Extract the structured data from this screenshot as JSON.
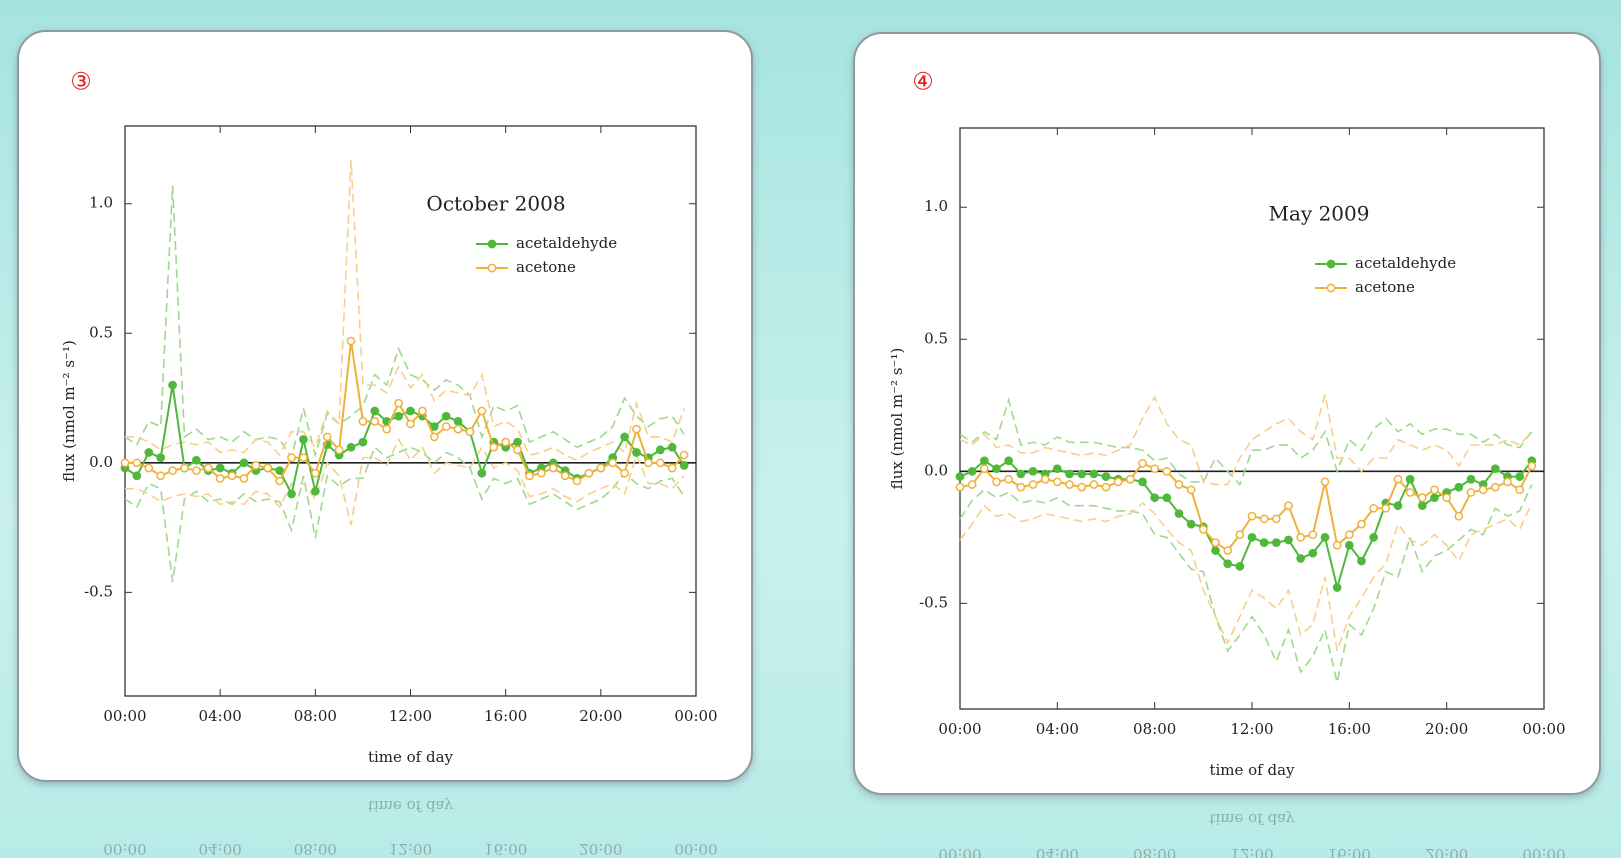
{
  "chart_data": [
    {
      "type": "line",
      "panel_label": "③",
      "title": "October 2008",
      "xlabel": "time of day",
      "ylabel": "flux (nmol m⁻² s⁻¹)",
      "legend": "upper right",
      "zero_line": true,
      "x": [
        0,
        0.5,
        1,
        1.5,
        2,
        2.5,
        3,
        3.5,
        4,
        4.5,
        5,
        5.5,
        6,
        6.5,
        7,
        7.5,
        8,
        8.5,
        9,
        9.5,
        10,
        10.5,
        11,
        11.5,
        12,
        12.5,
        13,
        13.5,
        14,
        14.5,
        15,
        15.5,
        16,
        16.5,
        17,
        17.5,
        18,
        18.5,
        19,
        19.5,
        20,
        20.5,
        21,
        21.5,
        22,
        22.5,
        23,
        23.5
      ],
      "xlim": [
        0,
        24
      ],
      "xticks": [
        {
          "value": 0,
          "label": "00:00"
        },
        {
          "value": 4,
          "label": "04:00"
        },
        {
          "value": 8,
          "label": "08:00"
        },
        {
          "value": 12,
          "label": "12:00"
        },
        {
          "value": 16,
          "label": "16:00"
        },
        {
          "value": 20,
          "label": "20:00"
        },
        {
          "value": 24,
          "label": "00:00"
        }
      ],
      "ylim": [
        -0.9,
        1.3
      ],
      "yticks": [
        -0.5,
        {
          "value": 0,
          "label": "0.0"
        },
        0.5,
        {
          "value": 1,
          "label": "1.0"
        }
      ],
      "series": [
        {
          "color": "#9fd88f",
          "dash": true,
          "values": [
            0.1,
            0.07,
            0.16,
            0.14,
            1.07,
            0.1,
            0.13,
            0.09,
            0.1,
            0.08,
            0.12,
            0.09,
            0.1,
            0.09,
            0.02,
            0.21,
            0.03,
            0.19,
            0.15,
            0.18,
            0.22,
            0.34,
            0.3,
            0.44,
            0.34,
            0.32,
            0.28,
            0.32,
            0.3,
            0.26,
            0.1,
            0.22,
            0.2,
            0.22,
            0.08,
            0.1,
            0.12,
            0.09,
            0.06,
            0.08,
            0.1,
            0.14,
            0.25,
            0.18,
            0.14,
            0.17,
            0.18,
            0.11
          ]
        },
        {
          "color": "#9fd88f",
          "dash": true,
          "values": [
            -0.14,
            -0.17,
            -0.08,
            -0.1,
            -0.46,
            -0.14,
            -0.11,
            -0.15,
            -0.14,
            -0.16,
            -0.12,
            -0.15,
            -0.14,
            -0.15,
            -0.26,
            -0.05,
            -0.29,
            -0.05,
            -0.09,
            -0.06,
            -0.06,
            0.06,
            0.02,
            0.04,
            0.06,
            0.04,
            0.0,
            0.04,
            0.02,
            -0.02,
            -0.14,
            -0.06,
            -0.08,
            -0.06,
            -0.16,
            -0.14,
            -0.12,
            -0.15,
            -0.18,
            -0.16,
            -0.14,
            -0.1,
            -0.04,
            -0.08,
            -0.1,
            -0.07,
            -0.06,
            -0.13
          ]
        },
        {
          "color": "#f7cf8a",
          "dash": true,
          "values": [
            0.1,
            0.1,
            0.08,
            0.05,
            0.07,
            0.08,
            0.07,
            0.08,
            0.04,
            0.05,
            0.04,
            0.09,
            0.08,
            0.03,
            0.12,
            0.12,
            0.06,
            0.2,
            0.15,
            1.17,
            0.3,
            0.3,
            0.27,
            0.37,
            0.29,
            0.34,
            0.24,
            0.28,
            0.27,
            0.26,
            0.34,
            0.14,
            0.16,
            0.13,
            0.03,
            0.04,
            0.06,
            0.03,
            0.01,
            0.04,
            0.06,
            0.08,
            0.04,
            0.23,
            0.1,
            0.1,
            0.08,
            0.21
          ]
        },
        {
          "color": "#f7cf8a",
          "dash": true,
          "values": [
            -0.1,
            -0.1,
            -0.12,
            -0.15,
            -0.13,
            -0.12,
            -0.13,
            -0.12,
            -0.16,
            -0.15,
            -0.16,
            -0.11,
            -0.12,
            -0.17,
            -0.08,
            -0.08,
            -0.14,
            0.0,
            -0.05,
            -0.24,
            0.02,
            0.02,
            -0.01,
            0.09,
            0.01,
            0.06,
            -0.04,
            0.0,
            -0.01,
            -0.02,
            0.06,
            -0.02,
            0.0,
            -0.03,
            -0.13,
            -0.12,
            -0.1,
            -0.13,
            -0.15,
            -0.12,
            -0.1,
            -0.08,
            -0.12,
            0.03,
            -0.08,
            -0.08,
            -0.1,
            -0.05
          ]
        },
        {
          "name": "acetaldehyde",
          "color": "#4fb83a",
          "marker": "filled",
          "values": [
            -0.02,
            -0.05,
            0.04,
            0.02,
            0.3,
            -0.02,
            0.01,
            -0.03,
            -0.02,
            -0.04,
            0.0,
            -0.03,
            -0.02,
            -0.03,
            -0.12,
            0.09,
            -0.11,
            0.07,
            0.03,
            0.06,
            0.08,
            0.2,
            0.16,
            0.18,
            0.2,
            0.18,
            0.14,
            0.18,
            0.16,
            0.12,
            -0.04,
            0.08,
            0.06,
            0.08,
            -0.04,
            -0.02,
            0.0,
            -0.03,
            -0.06,
            -0.04,
            -0.02,
            0.02,
            0.1,
            0.04,
            0.02,
            0.05,
            0.06,
            -0.01
          ]
        },
        {
          "name": "acetone",
          "color": "#f0b13a",
          "marker": "open",
          "values": [
            0.0,
            0.0,
            -0.02,
            -0.05,
            -0.03,
            -0.02,
            -0.03,
            -0.02,
            -0.06,
            -0.05,
            -0.06,
            -0.01,
            -0.02,
            -0.07,
            0.02,
            0.02,
            -0.04,
            0.1,
            0.05,
            0.47,
            0.16,
            0.16,
            0.13,
            0.23,
            0.15,
            0.2,
            0.1,
            0.14,
            0.13,
            0.12,
            0.2,
            0.06,
            0.08,
            0.05,
            -0.05,
            -0.04,
            -0.02,
            -0.05,
            -0.07,
            -0.04,
            -0.02,
            0.0,
            -0.04,
            0.13,
            0.0,
            0.0,
            -0.02,
            0.03
          ]
        }
      ]
    },
    {
      "type": "line",
      "panel_label": "④",
      "title": "May 2009",
      "xlabel": "time of day",
      "ylabel": "flux (nmol m⁻² s⁻¹)",
      "legend": "upper right",
      "zero_line": true,
      "x": [
        0,
        0.5,
        1,
        1.5,
        2,
        2.5,
        3,
        3.5,
        4,
        4.5,
        5,
        5.5,
        6,
        6.5,
        7,
        7.5,
        8,
        8.5,
        9,
        9.5,
        10,
        10.5,
        11,
        11.5,
        12,
        12.5,
        13,
        13.5,
        14,
        14.5,
        15,
        15.5,
        16,
        16.5,
        17,
        17.5,
        18,
        18.5,
        19,
        19.5,
        20,
        20.5,
        21,
        21.5,
        22,
        22.5,
        23,
        23.5
      ],
      "xlim": [
        0,
        24
      ],
      "xticks": [
        {
          "value": 0,
          "label": "00:00"
        },
        {
          "value": 4,
          "label": "04:00"
        },
        {
          "value": 8,
          "label": "08:00"
        },
        {
          "value": 12,
          "label": "12:00"
        },
        {
          "value": 16,
          "label": "16:00"
        },
        {
          "value": 20,
          "label": "20:00"
        },
        {
          "value": 24,
          "label": "00:00"
        }
      ],
      "ylim": [
        -0.9,
        1.3
      ],
      "yticks": [
        -0.5,
        {
          "value": 0,
          "label": "0.0"
        },
        0.5,
        {
          "value": 1,
          "label": "1.0"
        }
      ],
      "series": [
        {
          "color": "#9fd88f",
          "dash": true,
          "values": [
            0.14,
            0.11,
            0.15,
            0.12,
            0.27,
            0.1,
            0.11,
            0.1,
            0.13,
            0.11,
            0.11,
            0.11,
            0.1,
            0.09,
            0.09,
            0.08,
            0.04,
            0.05,
            -0.01,
            -0.04,
            -0.04,
            0.05,
            0.0,
            -0.05,
            0.08,
            0.08,
            0.1,
            0.1,
            0.05,
            0.08,
            0.15,
            0.0,
            0.12,
            0.08,
            0.16,
            0.2,
            0.15,
            0.18,
            0.14,
            0.16,
            0.16,
            0.14,
            0.14,
            0.11,
            0.14,
            0.1,
            0.09,
            0.15
          ]
        },
        {
          "color": "#9fd88f",
          "dash": true,
          "values": [
            -0.18,
            -0.11,
            -0.07,
            -0.1,
            -0.08,
            -0.12,
            -0.11,
            -0.12,
            -0.1,
            -0.13,
            -0.13,
            -0.13,
            -0.14,
            -0.15,
            -0.15,
            -0.16,
            -0.24,
            -0.25,
            -0.31,
            -0.37,
            -0.38,
            -0.55,
            -0.68,
            -0.62,
            -0.55,
            -0.62,
            -0.72,
            -0.6,
            -0.76,
            -0.7,
            -0.6,
            -0.8,
            -0.58,
            -0.62,
            -0.52,
            -0.38,
            -0.4,
            -0.25,
            -0.38,
            -0.32,
            -0.3,
            -0.26,
            -0.22,
            -0.24,
            -0.14,
            -0.17,
            -0.15,
            -0.05
          ]
        },
        {
          "color": "#f7cf8a",
          "dash": true,
          "values": [
            0.12,
            0.1,
            0.14,
            0.09,
            0.1,
            0.07,
            0.07,
            0.09,
            0.08,
            0.07,
            0.06,
            0.07,
            0.06,
            0.08,
            0.1,
            0.2,
            0.28,
            0.18,
            0.12,
            0.1,
            -0.04,
            -0.05,
            -0.05,
            0.05,
            0.12,
            0.15,
            0.18,
            0.2,
            0.15,
            0.12,
            0.29,
            0.05,
            0.05,
            0.0,
            0.05,
            0.05,
            0.12,
            0.1,
            0.08,
            0.1,
            0.08,
            0.02,
            0.1,
            0.1,
            0.1,
            0.12,
            0.1,
            0.15
          ]
        },
        {
          "color": "#f7cf8a",
          "dash": true,
          "values": [
            -0.26,
            -0.2,
            -0.13,
            -0.17,
            -0.16,
            -0.19,
            -0.18,
            -0.16,
            -0.17,
            -0.18,
            -0.19,
            -0.18,
            -0.19,
            -0.17,
            -0.16,
            -0.12,
            -0.16,
            -0.22,
            -0.27,
            -0.3,
            -0.45,
            -0.55,
            -0.65,
            -0.55,
            -0.45,
            -0.48,
            -0.52,
            -0.45,
            -0.62,
            -0.58,
            -0.4,
            -0.68,
            -0.55,
            -0.48,
            -0.4,
            -0.35,
            -0.2,
            -0.26,
            -0.28,
            -0.24,
            -0.28,
            -0.34,
            -0.24,
            -0.22,
            -0.2,
            -0.18,
            -0.22,
            -0.12
          ]
        },
        {
          "name": "acetaldehyde",
          "color": "#4fb83a",
          "marker": "filled",
          "values": [
            -0.02,
            0.0,
            0.04,
            0.01,
            0.04,
            -0.01,
            0.0,
            -0.01,
            0.01,
            -0.01,
            -0.01,
            -0.01,
            -0.02,
            -0.03,
            -0.03,
            -0.04,
            -0.1,
            -0.1,
            -0.16,
            -0.2,
            -0.21,
            -0.3,
            -0.35,
            -0.36,
            -0.25,
            -0.27,
            -0.27,
            -0.26,
            -0.33,
            -0.31,
            -0.25,
            -0.44,
            -0.28,
            -0.34,
            -0.25,
            -0.12,
            -0.13,
            -0.03,
            -0.13,
            -0.1,
            -0.08,
            -0.06,
            -0.03,
            -0.05,
            0.01,
            -0.02,
            -0.02,
            0.04
          ]
        },
        {
          "name": "acetone",
          "color": "#f0b13a",
          "marker": "open",
          "values": [
            -0.06,
            -0.05,
            0.01,
            -0.04,
            -0.03,
            -0.06,
            -0.05,
            -0.03,
            -0.04,
            -0.05,
            -0.06,
            -0.05,
            -0.06,
            -0.04,
            -0.03,
            0.03,
            0.01,
            0.0,
            -0.05,
            -0.07,
            -0.22,
            -0.27,
            -0.3,
            -0.24,
            -0.17,
            -0.18,
            -0.18,
            -0.13,
            -0.25,
            -0.24,
            -0.04,
            -0.28,
            -0.24,
            -0.2,
            -0.14,
            -0.14,
            -0.03,
            -0.08,
            -0.1,
            -0.07,
            -0.1,
            -0.17,
            -0.08,
            -0.07,
            -0.06,
            -0.04,
            -0.07,
            0.02
          ]
        }
      ]
    }
  ]
}
